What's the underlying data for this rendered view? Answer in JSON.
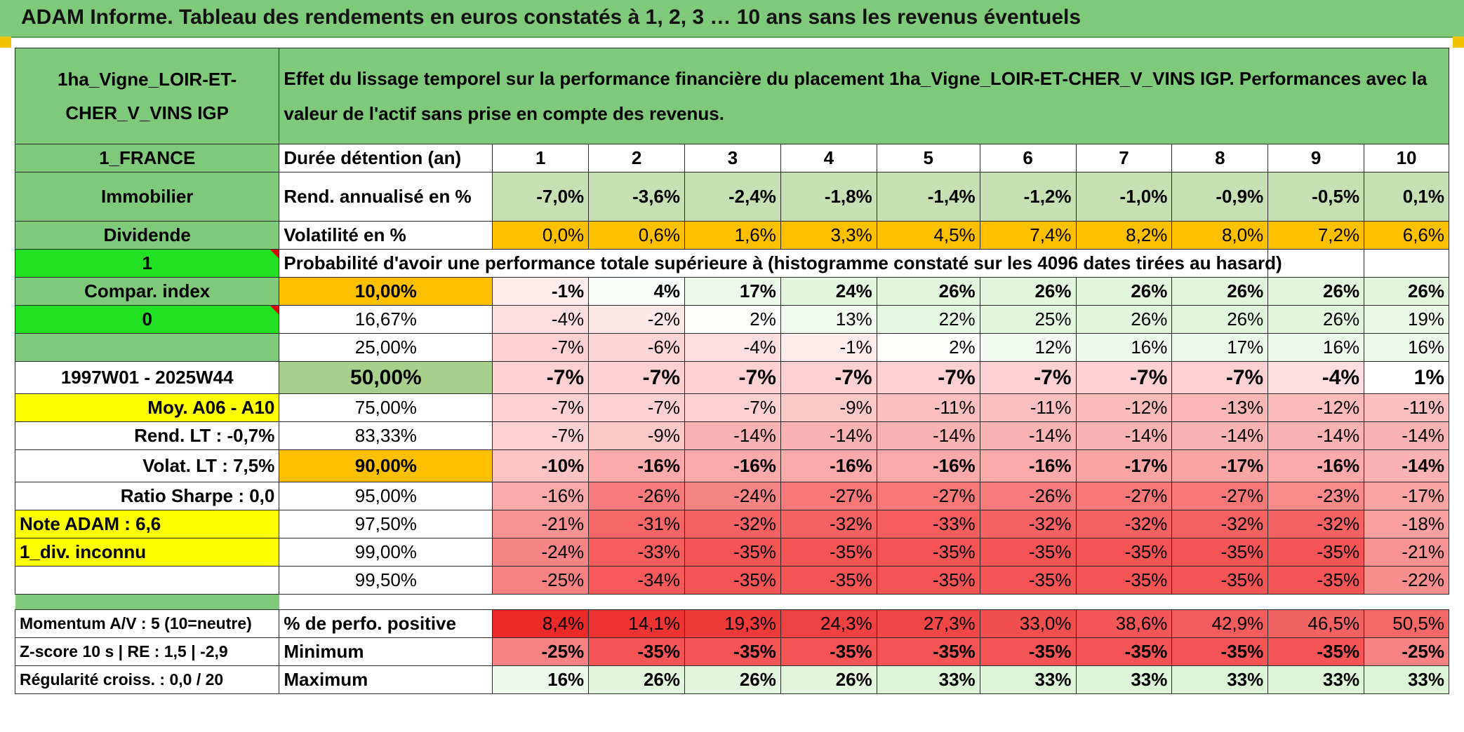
{
  "title": "ADAM Informe. Tableau des rendements en euros constatés à 1, 2, 3 … 10 ans sans les revenus éventuels",
  "asset_name": "1ha_Vigne_LOIR-ET-CHER_V_VINS IGP",
  "description": "Effet du lissage temporel sur la performance financière du placement 1ha_Vigne_LOIR-ET-CHER_V_VINS IGP. Performances avec la valeur de l'actif sans prise en compte des revenus.",
  "left": {
    "country": "1_FRANCE",
    "category": "Immobilier",
    "dividend_label": "Dividende",
    "dividend_value": "1",
    "compar_label": "Compar. index",
    "compar_value": "0",
    "period": "1997W01 - 2025W44",
    "moy": "Moy. A06 - A10",
    "rend_lt": "Rend. LT :   -0,7%",
    "volat_lt": "Volat. LT :   7,5%",
    "sharpe": "Ratio Sharpe :    0,0",
    "note": "Note ADAM : 6,6",
    "div": "1_div. inconnu",
    "momentum": "Momentum A/V : 5 (10=neutre)",
    "zscore": "Z-score 10 s | RE : 1,5 | -2,9",
    "regularite": "Régularité croiss. : 0,0 / 20"
  },
  "durations_label": "Durée détention (an)",
  "durations": [
    "1",
    "2",
    "3",
    "4",
    "5",
    "6",
    "7",
    "8",
    "9",
    "10"
  ],
  "rend_label": "Rend. annualisé en %",
  "rend": [
    "-7,0%",
    "-3,6%",
    "-2,4%",
    "-1,8%",
    "-1,4%",
    "-1,2%",
    "-1,0%",
    "-0,9%",
    "-0,5%",
    "0,1%"
  ],
  "volat_label": "Volatilité en %",
  "volat": [
    "0,0%",
    "0,6%",
    "1,6%",
    "3,3%",
    "4,5%",
    "7,4%",
    "8,2%",
    "8,0%",
    "7,2%",
    "6,6%"
  ],
  "prob_label": "Probabilité d'avoir une performance totale supérieure à (histogramme constaté sur les 4096 dates tirées au hasard)",
  "percentiles": [
    {
      "p": "10,00%",
      "v": [
        "-1%",
        "4%",
        "17%",
        "24%",
        "26%",
        "26%",
        "26%",
        "26%",
        "26%",
        "26%"
      ]
    },
    {
      "p": "16,67%",
      "v": [
        "-4%",
        "-2%",
        "2%",
        "13%",
        "22%",
        "25%",
        "26%",
        "26%",
        "26%",
        "19%"
      ]
    },
    {
      "p": "25,00%",
      "v": [
        "-7%",
        "-6%",
        "-4%",
        "-1%",
        "2%",
        "12%",
        "16%",
        "17%",
        "16%",
        "16%"
      ]
    },
    {
      "p": "50,00%",
      "v": [
        "-7%",
        "-7%",
        "-7%",
        "-7%",
        "-7%",
        "-7%",
        "-7%",
        "-7%",
        "-4%",
        "1%"
      ]
    },
    {
      "p": "75,00%",
      "v": [
        "-7%",
        "-7%",
        "-7%",
        "-9%",
        "-11%",
        "-11%",
        "-12%",
        "-13%",
        "-12%",
        "-11%"
      ]
    },
    {
      "p": "83,33%",
      "v": [
        "-7%",
        "-9%",
        "-14%",
        "-14%",
        "-14%",
        "-14%",
        "-14%",
        "-14%",
        "-14%",
        "-14%"
      ]
    },
    {
      "p": "90,00%",
      "v": [
        "-10%",
        "-16%",
        "-16%",
        "-16%",
        "-16%",
        "-16%",
        "-17%",
        "-17%",
        "-16%",
        "-14%"
      ]
    },
    {
      "p": "95,00%",
      "v": [
        "-16%",
        "-26%",
        "-24%",
        "-27%",
        "-27%",
        "-26%",
        "-27%",
        "-27%",
        "-23%",
        "-17%"
      ]
    },
    {
      "p": "97,50%",
      "v": [
        "-21%",
        "-31%",
        "-32%",
        "-32%",
        "-33%",
        "-32%",
        "-32%",
        "-32%",
        "-32%",
        "-18%"
      ]
    },
    {
      "p": "99,00%",
      "v": [
        "-24%",
        "-33%",
        "-35%",
        "-35%",
        "-35%",
        "-35%",
        "-35%",
        "-35%",
        "-35%",
        "-21%"
      ]
    },
    {
      "p": "99,50%",
      "v": [
        "-25%",
        "-34%",
        "-35%",
        "-35%",
        "-35%",
        "-35%",
        "-35%",
        "-35%",
        "-35%",
        "-22%"
      ]
    }
  ],
  "perfpos_label": "% de perfo. positive",
  "perfpos": [
    "8,4%",
    "14,1%",
    "19,3%",
    "24,3%",
    "27,3%",
    "33,0%",
    "38,6%",
    "42,9%",
    "46,5%",
    "50,5%"
  ],
  "min_label": "Minimum",
  "min": [
    "-25%",
    "-35%",
    "-35%",
    "-35%",
    "-35%",
    "-35%",
    "-35%",
    "-35%",
    "-35%",
    "-25%"
  ],
  "max_label": "Maximum",
  "max": [
    "16%",
    "26%",
    "26%",
    "26%",
    "33%",
    "33%",
    "33%",
    "33%",
    "33%",
    "33%"
  ],
  "colors": {
    "header_green": "#7fc97a",
    "bright_green": "#22e022",
    "yellow": "#ffff00",
    "orange": "#ffc000",
    "light_green": "#a8d08d",
    "red_text": "#e00000"
  }
}
